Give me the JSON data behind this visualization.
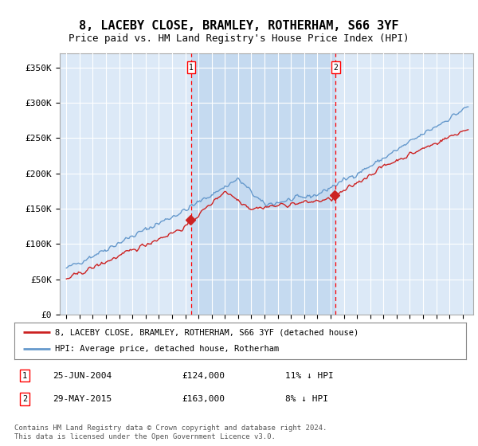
{
  "title": "8, LACEBY CLOSE, BRAMLEY, ROTHERHAM, S66 3YF",
  "subtitle": "Price paid vs. HM Land Registry's House Price Index (HPI)",
  "background_color": "#ffffff",
  "plot_bg_color": "#dce9f7",
  "shaded_region_color": "#c5daf0",
  "legend_line1": "8, LACEBY CLOSE, BRAMLEY, ROTHERHAM, S66 3YF (detached house)",
  "legend_line2": "HPI: Average price, detached house, Rotherham",
  "footer": "Contains HM Land Registry data © Crown copyright and database right 2024.\nThis data is licensed under the Open Government Licence v3.0.",
  "transaction1_date": "25-JUN-2004",
  "transaction1_price": 124000,
  "transaction1_label": "11% ↓ HPI",
  "transaction2_date": "29-MAY-2015",
  "transaction2_price": 163000,
  "transaction2_label": "8% ↓ HPI",
  "ylim": [
    0,
    370000
  ],
  "xlim_min": 1994.5,
  "xlim_max": 2025.8,
  "red_color": "#cc2222",
  "blue_color": "#6699cc",
  "grid_color": "#ffffff",
  "title_fontsize": 11,
  "subtitle_fontsize": 9
}
